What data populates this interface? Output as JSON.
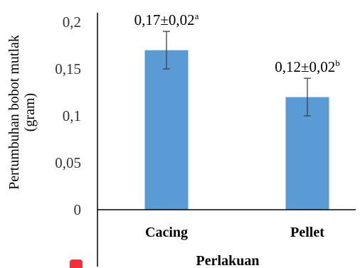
{
  "chart_data": {
    "type": "bar",
    "categories": [
      "Cacing",
      "Pellet"
    ],
    "values": [
      0.17,
      0.12
    ],
    "errors": [
      0.02,
      0.02
    ],
    "data_labels": [
      {
        "value": "0,17±0,02",
        "sup": "a"
      },
      {
        "value": "0,12±0,02",
        "sup": "b"
      }
    ],
    "title": "",
    "xlabel": "Perlakuan",
    "ylabel": [
      "Pertumbuhan bobot mutlak",
      "(gram)"
    ],
    "ylim": [
      0,
      0.2
    ],
    "y_ticks": [
      0,
      0.05,
      0.1,
      0.15,
      0.2
    ],
    "y_tick_labels": [
      "0",
      "0,05",
      "0,1",
      "0,15",
      "0,2"
    ],
    "grid": false,
    "colors": {
      "bar": "#5b9bd5",
      "axis": "#000000",
      "error_bar": "#404040"
    }
  },
  "decor": {
    "marker_color": "#f2303a"
  }
}
